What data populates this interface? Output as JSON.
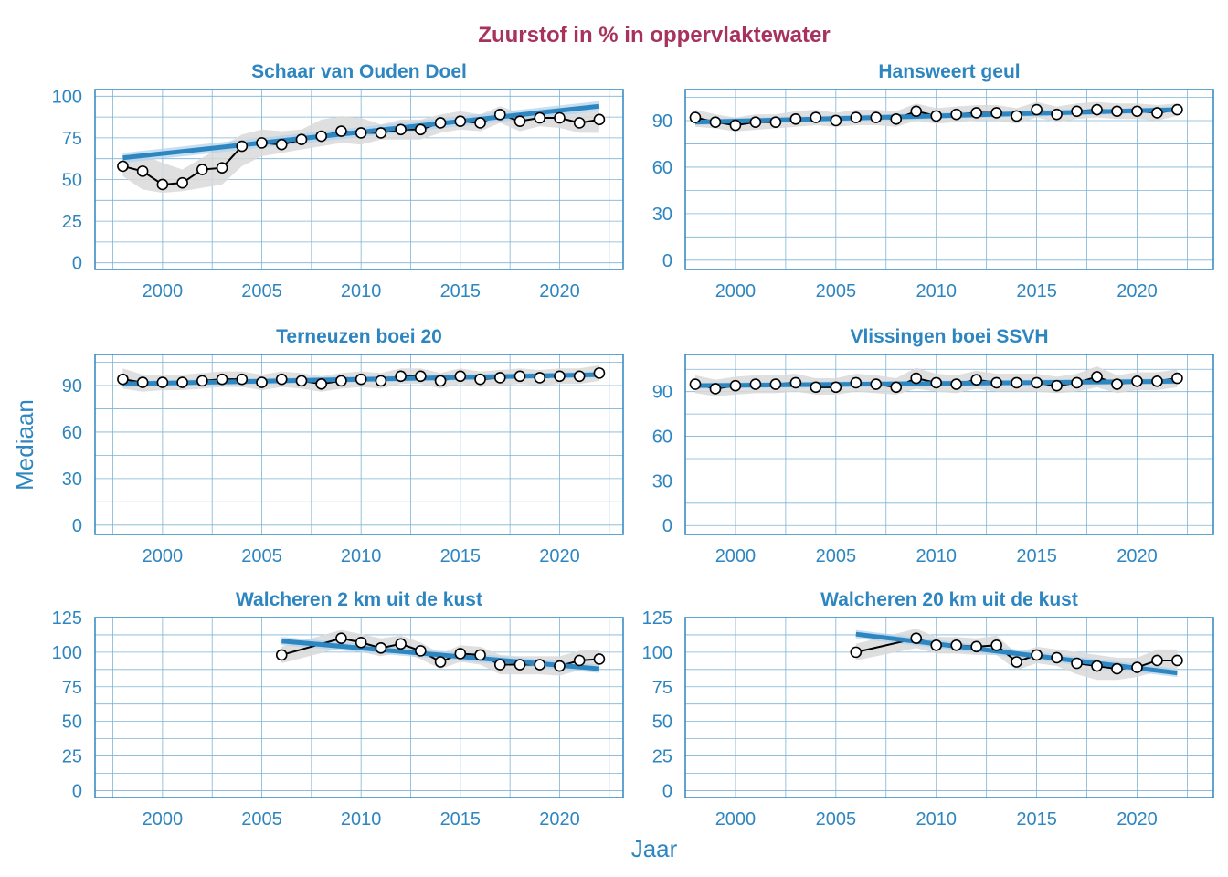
{
  "title": "Zuurstof in % in oppervlaktewater",
  "xlabel": "Jaar",
  "ylabel": "Mediaan",
  "colors": {
    "title": "#a8325e",
    "accent": "#2e86c1",
    "grid": "#7fb3d5",
    "ribbon": "#d9d9d9",
    "trend_ribbon": "#aed1ec",
    "line": "#000000"
  },
  "chart_data": [
    {
      "type": "line",
      "title": "Schaar van Ouden Doel",
      "xlim": [
        1996.6,
        2023.2
      ],
      "ylim": [
        -4,
        104
      ],
      "x_ticks": [
        2000,
        2005,
        2010,
        2015,
        2020
      ],
      "y_ticks": [
        0,
        25,
        50,
        75,
        100
      ],
      "x": [
        1998,
        1999,
        2000,
        2001,
        2002,
        2003,
        2004,
        2005,
        2006,
        2007,
        2008,
        2009,
        2010,
        2011,
        2012,
        2013,
        2014,
        2015,
        2016,
        2017,
        2018,
        2019,
        2020,
        2021,
        2022
      ],
      "y": [
        58,
        55,
        47,
        48,
        56,
        57,
        70,
        72,
        71,
        74,
        76,
        79,
        78,
        78,
        80,
        80,
        84,
        85,
        84,
        89,
        85,
        87,
        87,
        84,
        86
      ],
      "band_low": [
        52,
        44,
        42,
        43,
        45,
        47,
        58,
        64,
        66,
        68,
        70,
        72,
        71,
        74,
        74,
        74,
        78,
        80,
        79,
        84,
        79,
        82,
        81,
        78,
        78
      ],
      "band_high": [
        63,
        65,
        60,
        56,
        63,
        70,
        77,
        80,
        79,
        80,
        86,
        88,
        87,
        83,
        86,
        86,
        89,
        91,
        89,
        94,
        90,
        92,
        93,
        90,
        91
      ],
      "trend": [
        63,
        94
      ],
      "trend_band": 3
    },
    {
      "type": "line",
      "title": "Hansweert geul",
      "xlim": [
        1997.5,
        2023.8
      ],
      "ylim": [
        -6,
        110
      ],
      "x_ticks": [
        2000,
        2005,
        2010,
        2015,
        2020
      ],
      "y_ticks": [
        0,
        30,
        60,
        90
      ],
      "x": [
        1998,
        1999,
        2000,
        2001,
        2002,
        2003,
        2004,
        2005,
        2006,
        2007,
        2008,
        2009,
        2010,
        2011,
        2012,
        2013,
        2014,
        2015,
        2016,
        2017,
        2018,
        2019,
        2020,
        2021,
        2022
      ],
      "y": [
        92,
        89,
        87,
        89,
        89,
        91,
        92,
        90,
        92,
        92,
        91,
        96,
        93,
        94,
        95,
        95,
        93,
        97,
        94,
        96,
        97,
        96,
        96,
        95,
        97
      ],
      "band_low": [
        86,
        85,
        83,
        84,
        85,
        86,
        87,
        86,
        87,
        87,
        86,
        90,
        88,
        89,
        90,
        90,
        88,
        92,
        89,
        91,
        92,
        91,
        91,
        90,
        93
      ],
      "band_high": [
        97,
        94,
        92,
        94,
        94,
        96,
        97,
        95,
        97,
        97,
        96,
        101,
        98,
        99,
        100,
        100,
        98,
        102,
        99,
        101,
        102,
        101,
        101,
        100,
        101
      ],
      "trend": [
        89,
        97
      ],
      "trend_band": 2
    },
    {
      "type": "line",
      "title": "Terneuzen boei 20",
      "xlim": [
        1996.6,
        2023.2
      ],
      "ylim": [
        -6,
        110
      ],
      "x_ticks": [
        2000,
        2005,
        2010,
        2015,
        2020
      ],
      "y_ticks": [
        0,
        30,
        60,
        90
      ],
      "x": [
        1998,
        1999,
        2000,
        2001,
        2002,
        2003,
        2004,
        2005,
        2006,
        2007,
        2008,
        2009,
        2010,
        2011,
        2012,
        2013,
        2014,
        2015,
        2016,
        2017,
        2018,
        2019,
        2020,
        2021,
        2022
      ],
      "y": [
        94,
        92,
        92,
        92,
        93,
        94,
        94,
        92,
        94,
        93,
        91,
        93,
        94,
        93,
        96,
        96,
        93,
        96,
        94,
        95,
        96,
        95,
        96,
        96,
        98
      ],
      "band_low": [
        88,
        86,
        87,
        87,
        88,
        89,
        89,
        87,
        89,
        88,
        86,
        88,
        89,
        88,
        91,
        91,
        88,
        91,
        89,
        90,
        91,
        90,
        91,
        91,
        93
      ],
      "band_high": [
        101,
        97,
        97,
        97,
        98,
        99,
        99,
        97,
        99,
        98,
        96,
        98,
        99,
        98,
        101,
        101,
        98,
        101,
        99,
        100,
        101,
        100,
        101,
        101,
        103
      ],
      "trend": [
        91,
        97
      ],
      "trend_band": 2
    },
    {
      "type": "line",
      "title": "Vlissingen boei SSVH",
      "xlim": [
        1997.5,
        2023.8
      ],
      "ylim": [
        -6,
        115
      ],
      "x_ticks": [
        2000,
        2005,
        2010,
        2015,
        2020
      ],
      "y_ticks": [
        0,
        30,
        60,
        90
      ],
      "x": [
        1998,
        1999,
        2000,
        2001,
        2002,
        2003,
        2004,
        2005,
        2006,
        2007,
        2008,
        2009,
        2010,
        2011,
        2012,
        2013,
        2014,
        2015,
        2016,
        2017,
        2018,
        2019,
        2020,
        2021,
        2022
      ],
      "y": [
        95,
        92,
        94,
        95,
        95,
        96,
        93,
        93,
        96,
        95,
        93,
        99,
        96,
        95,
        98,
        96,
        96,
        96,
        94,
        96,
        100,
        95,
        97,
        97,
        99
      ],
      "band_low": [
        89,
        87,
        88,
        89,
        89,
        90,
        88,
        88,
        90,
        89,
        88,
        92,
        90,
        89,
        92,
        90,
        90,
        90,
        89,
        90,
        93,
        89,
        91,
        91,
        93
      ],
      "band_high": [
        101,
        98,
        100,
        101,
        101,
        102,
        99,
        99,
        102,
        101,
        99,
        106,
        102,
        101,
        104,
        102,
        102,
        102,
        100,
        102,
        107,
        101,
        103,
        103,
        105
      ],
      "trend": [
        94,
        97
      ],
      "trend_band": 2
    },
    {
      "type": "line",
      "title": "Walcheren 2 km uit de kust",
      "xlim": [
        1996.6,
        2023.2
      ],
      "ylim": [
        -5,
        125
      ],
      "x_ticks": [
        2000,
        2005,
        2010,
        2015,
        2020
      ],
      "y_ticks": [
        0,
        25,
        50,
        75,
        100,
        125
      ],
      "x": [
        2006,
        2009,
        2010,
        2011,
        2012,
        2013,
        2014,
        2015,
        2016,
        2017,
        2018,
        2019,
        2020,
        2021,
        2022
      ],
      "y": [
        98,
        110,
        107,
        103,
        106,
        101,
        93,
        99,
        98,
        91,
        91,
        91,
        90,
        94,
        95
      ],
      "band_low": [
        92,
        103,
        100,
        97,
        100,
        95,
        88,
        93,
        91,
        84,
        84,
        84,
        83,
        87,
        88
      ],
      "band_high": [
        104,
        116,
        113,
        110,
        112,
        107,
        99,
        105,
        104,
        98,
        97,
        97,
        97,
        101,
        102
      ],
      "trend": [
        108,
        88
      ],
      "trend_band": 3
    },
    {
      "type": "line",
      "title": "Walcheren 20 km uit de kust",
      "xlim": [
        1997.5,
        2023.8
      ],
      "ylim": [
        -5,
        125
      ],
      "x_ticks": [
        2000,
        2005,
        2010,
        2015,
        2020
      ],
      "y_ticks": [
        0,
        25,
        50,
        75,
        100,
        125
      ],
      "x": [
        2006,
        2009,
        2010,
        2011,
        2012,
        2013,
        2014,
        2015,
        2016,
        2017,
        2018,
        2019,
        2020,
        2021,
        2022
      ],
      "y": [
        100,
        110,
        105,
        105,
        104,
        105,
        93,
        98,
        96,
        92,
        90,
        88,
        89,
        94,
        94
      ],
      "band_low": [
        94,
        103,
        99,
        99,
        98,
        98,
        87,
        92,
        90,
        84,
        80,
        80,
        82,
        86,
        86
      ],
      "band_high": [
        106,
        117,
        111,
        111,
        110,
        112,
        99,
        104,
        102,
        100,
        98,
        96,
        96,
        102,
        102
      ],
      "trend": [
        113,
        85
      ],
      "trend_band": 3
    }
  ]
}
